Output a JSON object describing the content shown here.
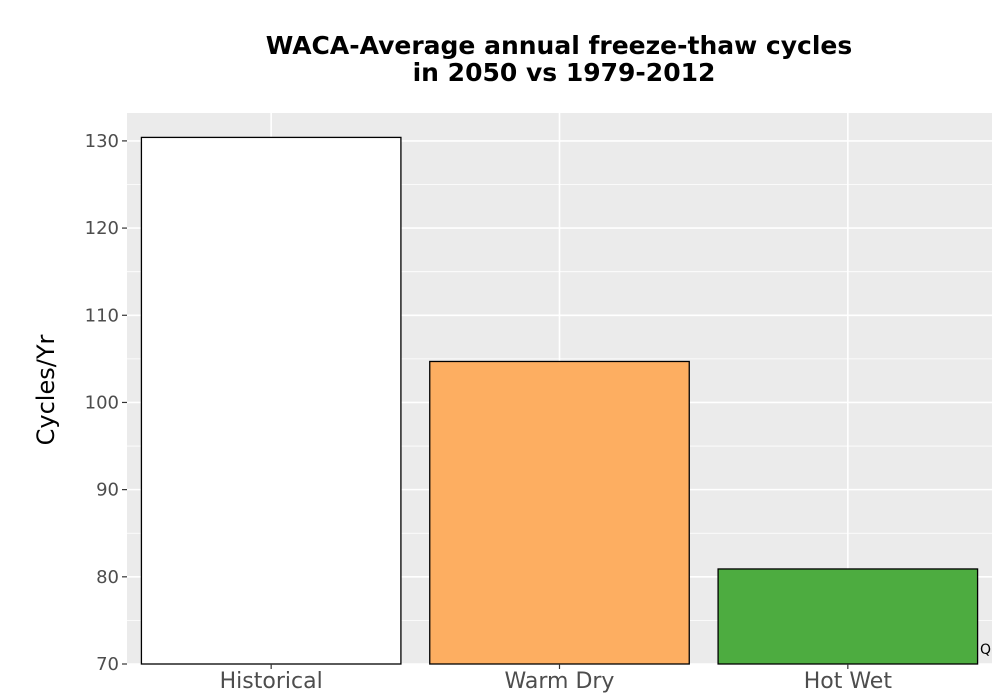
{
  "chart_data": {
    "type": "bar",
    "title_line1": "WACA-Average annual freeze-thaw cycles",
    "title_line2": "in 2050 vs 1979-2012",
    "xlabel": "",
    "ylabel": "Cycles/Yr",
    "categories": [
      "Historical",
      "Warm Dry",
      "Hot Wet"
    ],
    "values": [
      130.4,
      104.7,
      80.9
    ],
    "colors": [
      "#ffffff",
      "#fdae61",
      "#4dac40"
    ],
    "ylim": [
      70,
      133.2
    ],
    "yticks": [
      70,
      80,
      90,
      100,
      110,
      120,
      130
    ],
    "grid": true,
    "panel_background": "#ebebeb",
    "bar_outline": "#000000",
    "corner_note": "Q"
  }
}
